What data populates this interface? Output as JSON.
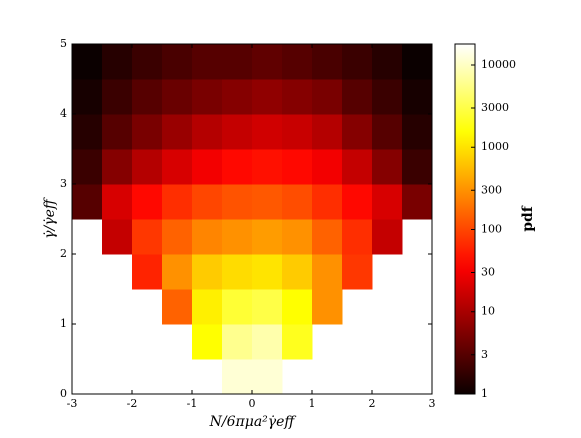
{
  "chart_data": {
    "type": "hexbin",
    "xlabel": "N/6πμa²γ̇eff",
    "ylabel": "γ̇/γ̇eff",
    "colorbar_label": "pdf",
    "colormap": "hot",
    "color_scale": "log",
    "xlim": [
      -3,
      3
    ],
    "ylim": [
      0,
      5
    ],
    "xticks": [
      -3,
      -2,
      -1,
      0,
      1,
      2,
      3
    ],
    "yticks": [
      0,
      1,
      2,
      3,
      4,
      5
    ],
    "clim": [
      1,
      18000
    ],
    "cticks": [
      1,
      3,
      10,
      30,
      100,
      300,
      1000,
      3000,
      10000
    ],
    "xbins": [
      -3,
      -2.5,
      -2,
      -1.5,
      -1,
      -0.5,
      0,
      0.5,
      1,
      1.5,
      2,
      2.5,
      3
    ],
    "ybins": [
      0,
      0.5,
      1,
      1.5,
      2,
      2.5,
      3,
      3.5,
      4,
      4.5,
      5
    ],
    "z": [
      [
        null,
        null,
        null,
        null,
        null,
        12000,
        12000,
        null,
        null,
        null,
        null,
        null
      ],
      [
        null,
        null,
        null,
        null,
        1500,
        6000,
        8000,
        2000,
        null,
        null,
        null,
        null
      ],
      [
        null,
        null,
        null,
        150,
        1200,
        2500,
        3000,
        1500,
        300,
        null,
        null,
        null
      ],
      [
        null,
        null,
        60,
        300,
        700,
        900,
        1000,
        700,
        300,
        80,
        null,
        null
      ],
      [
        null,
        15,
        80,
        150,
        250,
        300,
        350,
        300,
        150,
        70,
        15,
        null
      ],
      [
        3,
        20,
        40,
        70,
        100,
        120,
        130,
        110,
        70,
        40,
        20,
        5
      ],
      [
        2,
        6,
        12,
        20,
        30,
        40,
        45,
        40,
        30,
        15,
        6,
        2
      ],
      [
        1.5,
        3,
        5,
        8,
        12,
        15,
        18,
        16,
        12,
        6,
        3,
        1.5
      ],
      [
        1.2,
        2,
        3,
        4,
        5,
        6,
        7,
        6,
        5,
        3,
        2,
        1.2
      ],
      [
        1,
        1.5,
        2,
        2.5,
        3,
        3,
        3.5,
        3,
        2.5,
        2,
        1.5,
        1
      ]
    ]
  }
}
